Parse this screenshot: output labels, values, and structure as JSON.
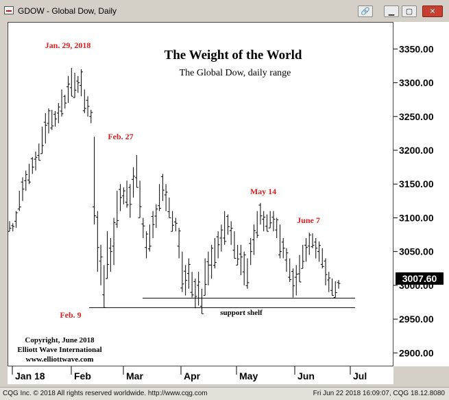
{
  "window": {
    "title": "GDOW - Global Dow, Daily",
    "buttons": [
      "link-icon",
      "minimize-icon",
      "restore-icon",
      "close-icon"
    ]
  },
  "status": {
    "left": "CQG Inc. © 2018 All rights reserved worldwide. http://www.cqg.com",
    "right": "Fri Jun 22 2018 16:09:07, CQG 18.12.8080"
  },
  "colors": {
    "annotation": "#e01b1b",
    "price": "#000000",
    "last_price_bg": "#000000"
  },
  "chart_data": {
    "type": "ohlc",
    "title": "The Weight of the World",
    "subtitle": "The Global Dow, daily range",
    "ylim": [
      2880,
      3390
    ],
    "yticks": [
      2900,
      2950,
      3000,
      3050,
      3100,
      3150,
      3200,
      3250,
      3300,
      3350
    ],
    "ytick_labels": [
      "2900.00",
      "2950.00",
      "3000.00",
      "3050.00",
      "3100.00",
      "3150.00",
      "3200.00",
      "3250.00",
      "3300.00",
      "3350.00"
    ],
    "xlabels": [
      "Jan 18",
      "Feb",
      "Mar",
      "Apr",
      "May",
      "Jun",
      "Jul"
    ],
    "last_price_label": "3007.60",
    "annotations": {
      "jan29": "Jan. 29, 2018",
      "feb27": "Feb. 27",
      "may14": "May 14",
      "june7": "June 7",
      "feb9": "Feb. 9",
      "support": "support shelf"
    },
    "credit": [
      "Copyright, June 2018",
      "Elliott Wave International",
      "www.elliottwave.com"
    ],
    "support_lines": [
      2981,
      2967
    ],
    "bars": [
      [
        3080,
        3095
      ],
      [
        3080,
        3092
      ],
      [
        3085,
        3110
      ],
      [
        3110,
        3140
      ],
      [
        3125,
        3160
      ],
      [
        3140,
        3170
      ],
      [
        3150,
        3180
      ],
      [
        3165,
        3190
      ],
      [
        3170,
        3198
      ],
      [
        3185,
        3210
      ],
      [
        3195,
        3235
      ],
      [
        3210,
        3255
      ],
      [
        3225,
        3262
      ],
      [
        3230,
        3260
      ],
      [
        3235,
        3258
      ],
      [
        3240,
        3270
      ],
      [
        3250,
        3290
      ],
      [
        3262,
        3282
      ],
      [
        3270,
        3310
      ],
      [
        3280,
        3322
      ],
      [
        3278,
        3315
      ],
      [
        3285,
        3310
      ],
      [
        3280,
        3320
      ],
      [
        3255,
        3290
      ],
      [
        3250,
        3280
      ],
      [
        3240,
        3260
      ],
      [
        3090,
        3220
      ],
      [
        3020,
        3110
      ],
      [
        3000,
        3060
      ],
      [
        2967,
        3030
      ],
      [
        3010,
        3080
      ],
      [
        3020,
        3070
      ],
      [
        3030,
        3100
      ],
      [
        3085,
        3140
      ],
      [
        3110,
        3150
      ],
      [
        3120,
        3145
      ],
      [
        3115,
        3155
      ],
      [
        3100,
        3150
      ],
      [
        3130,
        3175
      ],
      [
        3145,
        3193
      ],
      [
        3100,
        3155
      ],
      [
        3070,
        3100
      ],
      [
        3040,
        3080
      ],
      [
        3050,
        3090
      ],
      [
        3070,
        3110
      ],
      [
        3085,
        3120
      ],
      [
        3110,
        3150
      ],
      [
        3125,
        3165
      ],
      [
        3110,
        3150
      ],
      [
        3100,
        3130
      ],
      [
        3080,
        3110
      ],
      [
        3080,
        3100
      ],
      [
        3040,
        3085
      ],
      [
        2990,
        3050
      ],
      [
        2985,
        3030
      ],
      [
        2995,
        3040
      ],
      [
        2982,
        3020
      ],
      [
        2966,
        3010
      ],
      [
        2970,
        3020
      ],
      [
        2958,
        2995
      ],
      [
        2985,
        3040
      ],
      [
        3000,
        3050
      ],
      [
        3010,
        3060
      ],
      [
        3025,
        3070
      ],
      [
        3040,
        3080
      ],
      [
        3050,
        3090
      ],
      [
        3060,
        3110
      ],
      [
        3075,
        3105
      ],
      [
        3060,
        3095
      ],
      [
        3040,
        3080
      ],
      [
        3030,
        3060
      ],
      [
        3015,
        3060
      ],
      [
        3000,
        3050
      ],
      [
        2995,
        3040
      ],
      [
        3030,
        3070
      ],
      [
        3045,
        3090
      ],
      [
        3070,
        3110
      ],
      [
        3090,
        3122
      ],
      [
        3080,
        3110
      ],
      [
        3080,
        3105
      ],
      [
        3085,
        3110
      ],
      [
        3080,
        3110
      ],
      [
        3070,
        3100
      ],
      [
        3040,
        3090
      ],
      [
        3040,
        3070
      ],
      [
        3020,
        3055
      ],
      [
        3005,
        3040
      ],
      [
        2982,
        3025
      ],
      [
        2985,
        3030
      ],
      [
        3005,
        3045
      ],
      [
        3025,
        3060
      ],
      [
        3035,
        3070
      ],
      [
        3045,
        3078
      ],
      [
        3055,
        3077
      ],
      [
        3040,
        3070
      ],
      [
        3035,
        3065
      ],
      [
        3025,
        3055
      ],
      [
        3000,
        3040
      ],
      [
        2990,
        3020
      ],
      [
        2985,
        3010
      ],
      [
        2982,
        3006
      ],
      [
        2995,
        3008
      ]
    ]
  }
}
